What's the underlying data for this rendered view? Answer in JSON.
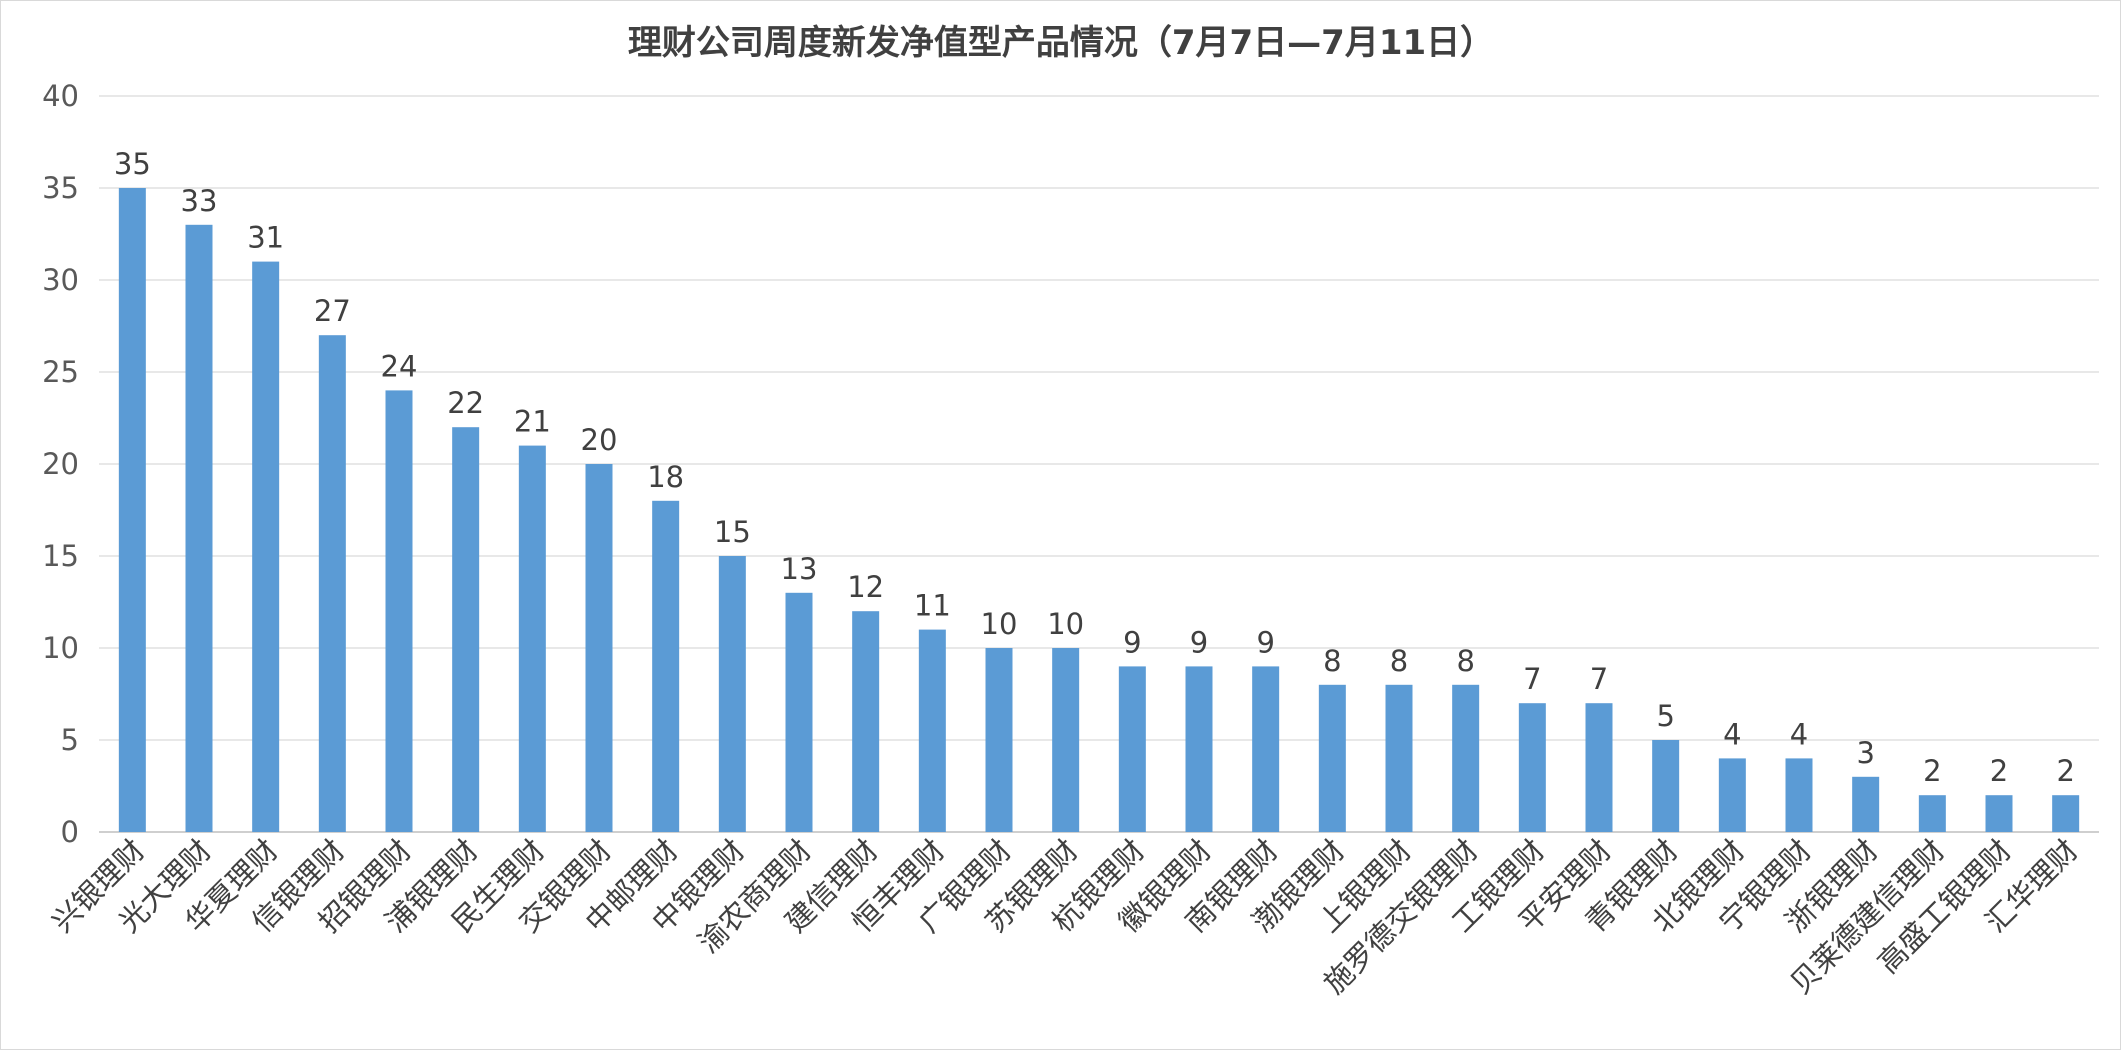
{
  "chart_data": {
    "type": "bar",
    "title": "理财公司周度新发净值型产品情况（7月7日—7月11日）",
    "xlabel": "",
    "ylabel": "",
    "ylim": [
      0,
      40
    ],
    "y_ticks": [
      0,
      5,
      10,
      15,
      20,
      25,
      30,
      35,
      40
    ],
    "grid": true,
    "legend": "none",
    "bar_color": "#5B9BD5",
    "categories": [
      "兴银理财",
      "光大理财",
      "华夏理财",
      "信银理财",
      "招银理财",
      "浦银理财",
      "民生理财",
      "交银理财",
      "中邮理财",
      "中银理财",
      "渝农商理财",
      "建信理财",
      "恒丰理财",
      "广银理财",
      "苏银理财",
      "杭银理财",
      "徽银理财",
      "南银理财",
      "渤银理财",
      "上银理财",
      "施罗德交银理财",
      "工银理财",
      "平安理财",
      "青银理财",
      "北银理财",
      "宁银理财",
      "浙银理财",
      "贝莱德建信理财",
      "高盛工银理财",
      "汇华理财"
    ],
    "values": [
      35,
      33,
      31,
      27,
      24,
      22,
      21,
      20,
      18,
      15,
      13,
      12,
      11,
      10,
      10,
      9,
      9,
      9,
      8,
      8,
      8,
      7,
      7,
      5,
      4,
      4,
      3,
      2,
      2,
      2
    ]
  }
}
